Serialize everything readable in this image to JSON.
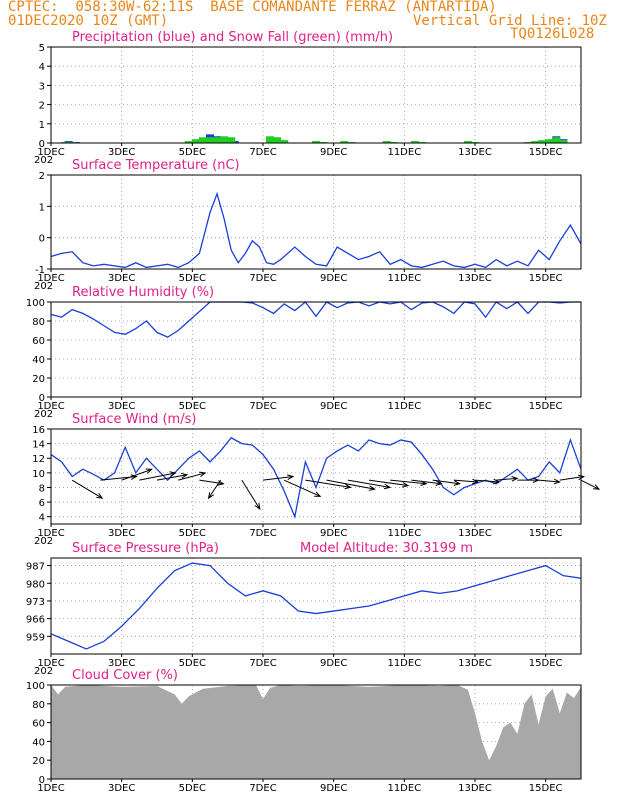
{
  "header": {
    "line1": "CPTEC:  058:30W-62:11S  BASE COMANDANTE FERRAZ (ANTARTIDA)",
    "line2_left": "01DEC2020 10Z (GMT)",
    "line2_right": "Vertical Grid Line: 10Z",
    "line3_right": "TQ0126L028",
    "color": "#e8861a"
  },
  "x_axis": {
    "tick_labels": [
      "1DEC",
      "3DEC",
      "5DEC",
      "7DEC",
      "9DEC",
      "11DEC",
      "13DEC",
      "15DEC"
    ],
    "tick_days": [
      0,
      2,
      4,
      6,
      8,
      10,
      12,
      14
    ],
    "day_range": [
      0,
      15
    ],
    "year_stub": "202"
  },
  "chart_data": [
    {
      "type": "area",
      "title": "Precipitation (blue) and Snow Fall (green) (mm/h)",
      "ylim": [
        0,
        5
      ],
      "y_ticks": [
        "0",
        "1",
        "2",
        "3",
        "4",
        "5"
      ],
      "colors": {
        "precipitation": "#1a3fd6",
        "snow": "#1fcf1f"
      },
      "series": [
        {
          "name": "Precipitation",
          "x": [
            0.5,
            0.7,
            4.0,
            4.3,
            4.5,
            4.7,
            4.9,
            5.2,
            6.5,
            13.9,
            14.1,
            14.3,
            14.5
          ],
          "y": [
            0.1,
            0.05,
            0.05,
            0.2,
            0.45,
            0.35,
            0.3,
            0.1,
            0.05,
            0.05,
            0.1,
            0.35,
            0.2
          ]
        },
        {
          "name": "Snow Fall",
          "x": [
            0.4,
            0.6,
            3.9,
            4.1,
            4.3,
            4.5,
            4.7,
            4.9,
            5.1,
            6.2,
            6.4,
            6.6,
            7.5,
            7.7,
            8.3,
            8.5,
            9.5,
            9.7,
            10.3,
            10.5,
            11.8,
            12.0,
            13.5,
            13.7,
            13.9,
            14.1,
            14.3,
            14.5
          ],
          "y": [
            0.05,
            0.05,
            0.1,
            0.2,
            0.3,
            0.3,
            0.3,
            0.35,
            0.3,
            0.35,
            0.3,
            0.15,
            0.1,
            0.05,
            0.1,
            0.05,
            0.1,
            0.05,
            0.1,
            0.05,
            0.1,
            0.05,
            0.05,
            0.1,
            0.15,
            0.2,
            0.3,
            0.15
          ]
        }
      ]
    },
    {
      "type": "line",
      "title": "Surface Temperature (nC)",
      "ylim": [
        -1,
        2
      ],
      "y_ticks": [
        "-1",
        "0",
        "1",
        "2"
      ],
      "color": "#1a3fd6",
      "x": [
        0,
        0.3,
        0.6,
        0.9,
        1.2,
        1.5,
        1.8,
        2.1,
        2.4,
        2.7,
        3.0,
        3.3,
        3.6,
        3.9,
        4.2,
        4.5,
        4.7,
        4.9,
        5.1,
        5.3,
        5.5,
        5.7,
        5.9,
        6.1,
        6.3,
        6.5,
        6.7,
        6.9,
        7.2,
        7.5,
        7.8,
        8.1,
        8.4,
        8.7,
        9.0,
        9.3,
        9.6,
        9.9,
        10.2,
        10.5,
        10.8,
        11.1,
        11.4,
        11.7,
        12.0,
        12.3,
        12.6,
        12.9,
        13.2,
        13.5,
        13.8,
        14.1,
        14.4,
        14.7,
        15.0
      ],
      "y": [
        -0.6,
        -0.5,
        -0.45,
        -0.8,
        -0.9,
        -0.85,
        -0.9,
        -0.95,
        -0.8,
        -0.95,
        -0.9,
        -0.85,
        -0.95,
        -0.8,
        -0.5,
        0.8,
        1.4,
        0.6,
        -0.4,
        -0.8,
        -0.5,
        -0.1,
        -0.3,
        -0.8,
        -0.85,
        -0.7,
        -0.5,
        -0.3,
        -0.6,
        -0.85,
        -0.9,
        -0.3,
        -0.5,
        -0.7,
        -0.6,
        -0.45,
        -0.85,
        -0.7,
        -0.9,
        -0.95,
        -0.85,
        -0.75,
        -0.9,
        -0.95,
        -0.85,
        -0.95,
        -0.7,
        -0.9,
        -0.75,
        -0.9,
        -0.4,
        -0.7,
        -0.1,
        0.4,
        -0.2
      ]
    },
    {
      "type": "line",
      "title": "Relative Humidity (%)",
      "ylim": [
        0,
        100
      ],
      "y_ticks": [
        "0",
        "20",
        "40",
        "60",
        "80",
        "100"
      ],
      "color": "#1a3fd6",
      "x": [
        0,
        0.3,
        0.6,
        0.9,
        1.2,
        1.5,
        1.8,
        2.1,
        2.4,
        2.7,
        3.0,
        3.3,
        3.6,
        3.9,
        4.2,
        4.5,
        4.8,
        5.1,
        5.4,
        5.7,
        6.0,
        6.3,
        6.6,
        6.9,
        7.2,
        7.5,
        7.8,
        8.1,
        8.4,
        8.7,
        9.0,
        9.3,
        9.6,
        9.9,
        10.2,
        10.5,
        10.8,
        11.1,
        11.4,
        11.7,
        12.0,
        12.3,
        12.6,
        12.9,
        13.2,
        13.5,
        13.8,
        14.1,
        14.4,
        14.7,
        15.0
      ],
      "y": [
        87,
        84,
        92,
        88,
        82,
        75,
        68,
        66,
        72,
        80,
        68,
        63,
        70,
        80,
        90,
        100,
        100,
        100,
        100,
        99,
        94,
        88,
        98,
        91,
        100,
        85,
        100,
        94,
        99,
        100,
        96,
        100,
        98,
        100,
        92,
        99,
        100,
        95,
        88,
        100,
        98,
        84,
        100,
        93,
        100,
        88,
        100,
        100,
        99,
        100,
        100
      ]
    },
    {
      "type": "line",
      "title": "Surface Wind (m/s)",
      "ylim": [
        3,
        16
      ],
      "y_ticks": [
        "4",
        "6",
        "8",
        "10",
        "12",
        "14",
        "16"
      ],
      "color": "#1a3fd6",
      "x": [
        0,
        0.3,
        0.6,
        0.9,
        1.2,
        1.5,
        1.8,
        2.1,
        2.4,
        2.7,
        3.0,
        3.3,
        3.6,
        3.9,
        4.2,
        4.5,
        4.8,
        5.1,
        5.4,
        5.7,
        6.0,
        6.3,
        6.6,
        6.9,
        7.2,
        7.5,
        7.8,
        8.1,
        8.4,
        8.7,
        9.0,
        9.3,
        9.6,
        9.9,
        10.2,
        10.5,
        10.8,
        11.1,
        11.4,
        11.7,
        12.0,
        12.3,
        12.6,
        12.9,
        13.2,
        13.5,
        13.8,
        14.1,
        14.4,
        14.7,
        15.0
      ],
      "y": [
        12.5,
        11.5,
        9.5,
        10.5,
        9.8,
        9.0,
        10.0,
        13.5,
        10.0,
        12.0,
        10.5,
        9.0,
        10.5,
        12.0,
        13.0,
        11.5,
        13.0,
        14.8,
        14.0,
        13.8,
        12.5,
        10.5,
        7.5,
        4.0,
        11.5,
        8.0,
        12.0,
        13.0,
        13.8,
        13.0,
        14.5,
        14.0,
        13.8,
        14.5,
        14.2,
        12.5,
        10.5,
        8.0,
        7.0,
        8.0,
        8.5,
        9.0,
        8.5,
        9.5,
        10.5,
        9.0,
        9.5,
        11.5,
        10.0,
        14.5,
        10.5
      ],
      "vectors": {
        "days": [
          0.6,
          1.4,
          2.0,
          2.5,
          3.0,
          3.6,
          4.2,
          4.8,
          5.4,
          6.0,
          6.6,
          7.2,
          7.8,
          8.4,
          9.0,
          9.6,
          10.2,
          10.8,
          11.4,
          12.0,
          12.6,
          13.2,
          13.8,
          14.4,
          15.0
        ],
        "u": [
          1.0,
          1.2,
          1.0,
          1.2,
          1.0,
          0.9,
          0.8,
          -0.4,
          0.6,
          1.0,
          1.2,
          1.5,
          1.6,
          1.4,
          1.3,
          1.2,
          1.0,
          0.9,
          0.8,
          0.8,
          0.7,
          0.7,
          0.7,
          0.8,
          0.6
        ],
        "v": [
          -1.0,
          0.2,
          0.6,
          0.4,
          0.3,
          0.4,
          -0.2,
          -1.0,
          -1.6,
          0.2,
          -0.9,
          -0.4,
          -0.5,
          -0.4,
          -0.3,
          -0.2,
          -0.2,
          -0.2,
          -0.1,
          -0.1,
          0.1,
          0.0,
          -0.1,
          0.2,
          -0.5
        ]
      }
    },
    {
      "type": "line",
      "title": "Surface Pressure (hPa)",
      "annotation": "Model Altitude: 30.3199 m",
      "ylim": [
        952,
        990
      ],
      "y_ticks": [
        "959",
        "966",
        "973",
        "980",
        "987"
      ],
      "color": "#1a3fd6",
      "x": [
        0,
        0.5,
        1.0,
        1.5,
        2.0,
        2.5,
        3.0,
        3.5,
        4.0,
        4.5,
        5.0,
        5.5,
        6.0,
        6.5,
        7.0,
        7.5,
        8.0,
        8.5,
        9.0,
        9.5,
        10.0,
        10.5,
        11.0,
        11.5,
        12.0,
        12.5,
        13.0,
        13.5,
        14.0,
        14.5,
        15.0
      ],
      "y": [
        960,
        957,
        954,
        957,
        963,
        970,
        978,
        985,
        988,
        987,
        980,
        975,
        977,
        975,
        969,
        968,
        969,
        970,
        971,
        973,
        975,
        977,
        976,
        977,
        979,
        981,
        983,
        985,
        987,
        983,
        982
      ]
    },
    {
      "type": "area",
      "title": "Cloud Cover (%)",
      "ylim": [
        0,
        100
      ],
      "y_ticks": [
        "0",
        "20",
        "40",
        "60",
        "80",
        "100"
      ],
      "color": "#a8a8a8",
      "x": [
        0,
        0.2,
        0.4,
        1.0,
        2.0,
        3.0,
        3.5,
        3.7,
        3.9,
        4.1,
        4.3,
        5.0,
        5.8,
        6.0,
        6.2,
        6.5,
        7.0,
        8.0,
        9.0,
        10.0,
        11.0,
        11.5,
        11.8,
        12.0,
        12.2,
        12.4,
        12.6,
        12.8,
        13.0,
        13.2,
        13.4,
        13.6,
        13.8,
        14.0,
        14.2,
        14.4,
        14.6,
        14.8,
        15.0
      ],
      "y": [
        100,
        90,
        98,
        100,
        98,
        99,
        90,
        80,
        88,
        92,
        96,
        99,
        100,
        85,
        97,
        100,
        99,
        100,
        98,
        100,
        99,
        100,
        95,
        70,
        40,
        20,
        35,
        55,
        60,
        48,
        80,
        90,
        58,
        88,
        96,
        70,
        92,
        86,
        98
      ]
    }
  ]
}
